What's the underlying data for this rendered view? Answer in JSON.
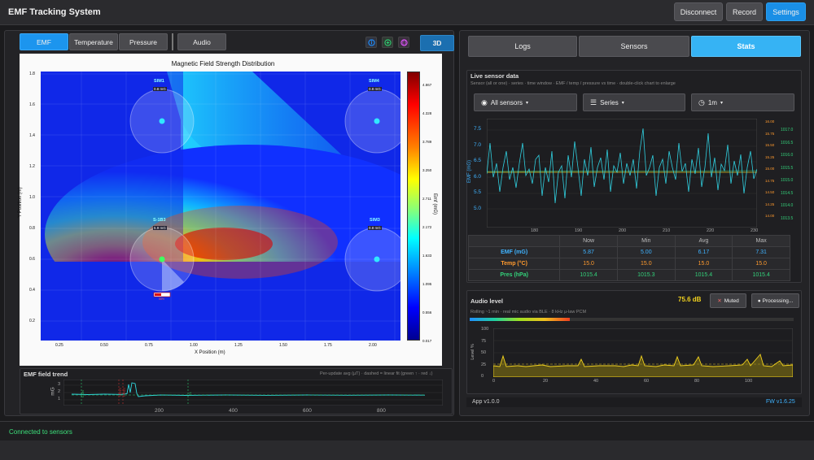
{
  "header": {
    "title": "EMF Tracking System",
    "disconnect_label": "Disconnect",
    "record_label": "Record",
    "settings_label": "Settings"
  },
  "left": {
    "tabs": [
      "EMF",
      "Temperature",
      "Pressure"
    ],
    "audio_tab": "Audio",
    "view_3d": "3D",
    "icon_buttons": [
      "info-icon",
      "plus-icon",
      "globe-icon"
    ],
    "colors": {
      "icon1": "#1e90ff",
      "icon2": "#2ecc71",
      "icon3": "#e056fd"
    }
  },
  "heatmap": {
    "title": "Magnetic Field Strength Distribution",
    "xlabel": "X Position (m)",
    "ylabel": "Y Position (m)",
    "colorbar_label": "Emf (mG)",
    "x_ticks": [
      "0.25",
      "0.50",
      "0.75",
      "1.00",
      "1.25",
      "1.50",
      "1.75",
      "2.00"
    ],
    "y_ticks": [
      "1.8",
      "1.6",
      "1.4",
      "1.2",
      "1.0",
      "0.8",
      "0.6",
      "0.4",
      "0.2"
    ],
    "colorbar_ticks": [
      "4.867",
      "4.328",
      "3.789",
      "3.250",
      "2.711",
      "2.172",
      "1.633",
      "1.095",
      "0.556",
      "0.017"
    ],
    "sensors": [
      {
        "name": "SIM1",
        "value": "0.8 mG",
        "x": 0.8,
        "y": 1.5
      },
      {
        "name": "SIM4",
        "value": "0.8 mG",
        "x": 2.0,
        "y": 1.5
      },
      {
        "name": "S-1B3",
        "value": "5.9 mG",
        "x": 0.8,
        "y": 0.6
      },
      {
        "name": "SIM3",
        "value": "0.8 mG",
        "x": 2.0,
        "y": 0.6
      }
    ],
    "tag_label": "88%"
  },
  "trend": {
    "title": "EMF field trend",
    "note": "Per-update avg (µT) · dashed = linear fit (green ↑ · red ↓)",
    "ylabel": "mG",
    "y_ticks": [
      "3",
      "2",
      "1"
    ],
    "x_ticks": [
      "200",
      "400",
      "600",
      "800"
    ],
    "markers": [
      "CON",
      "SENS",
      "PRSS",
      "T1"
    ]
  },
  "right": {
    "tabs": [
      "Logs",
      "Sensors",
      "Stats"
    ],
    "live_title": "Live sensor data",
    "live_subtitle": "Sensor (all or one) · series · time window · EMF / temp / pressure vs time · double-click chart to enlarge",
    "dropdowns": [
      "All sensors",
      "Series",
      "1m"
    ],
    "live_chart": {
      "ylabel": "EMF (mG)",
      "left_ticks": [
        "7.5",
        "7.0",
        "6.5",
        "6.0",
        "5.5",
        "5.0"
      ],
      "mid_ticks": [
        "16.00",
        "15.75",
        "15.50",
        "15.25",
        "15.00",
        "14.75",
        "14.50",
        "14.25",
        "14.00"
      ],
      "right_ticks": [
        "1017.0",
        "1016.5",
        "1016.0",
        "1015.5",
        "1015.0",
        "1014.5",
        "1014.0",
        "1013.5"
      ],
      "x_ticks": [
        "180",
        "190",
        "200",
        "210",
        "220",
        "230"
      ]
    },
    "stats": {
      "headers": [
        "",
        "Now",
        "Min",
        "Avg",
        "Max"
      ],
      "rows": [
        {
          "label": "EMF (mG)",
          "color": "#3fb3ff",
          "values": [
            "5.87",
            "5.00",
            "6.17",
            "7.31"
          ]
        },
        {
          "label": "Temp (°C)",
          "color": "#ff9a2e",
          "values": [
            "15.0",
            "15.0",
            "15.0",
            "15.0"
          ]
        },
        {
          "label": "Pres (hPa)",
          "color": "#33d17a",
          "values": [
            "1015.4",
            "1015.3",
            "1015.4",
            "1015.4"
          ]
        }
      ]
    },
    "audio": {
      "title": "Audio level",
      "level": "75.6 dB",
      "muted_label": "Muted",
      "processing_label": "Processing...",
      "subtitle": "Rolling ~1 min · real mic audio via BLE · 8 kHz μ-law PCM",
      "y_ticks": [
        "100",
        "75",
        "50",
        "25",
        "0"
      ],
      "x_ticks": [
        "0",
        "20",
        "40",
        "60",
        "80",
        "100"
      ],
      "ylabel": "Level %"
    },
    "app_version": "App  v1.0.0",
    "fw_version": "FW  v1.6.25"
  },
  "status": {
    "text": "Connected to sensors"
  }
}
